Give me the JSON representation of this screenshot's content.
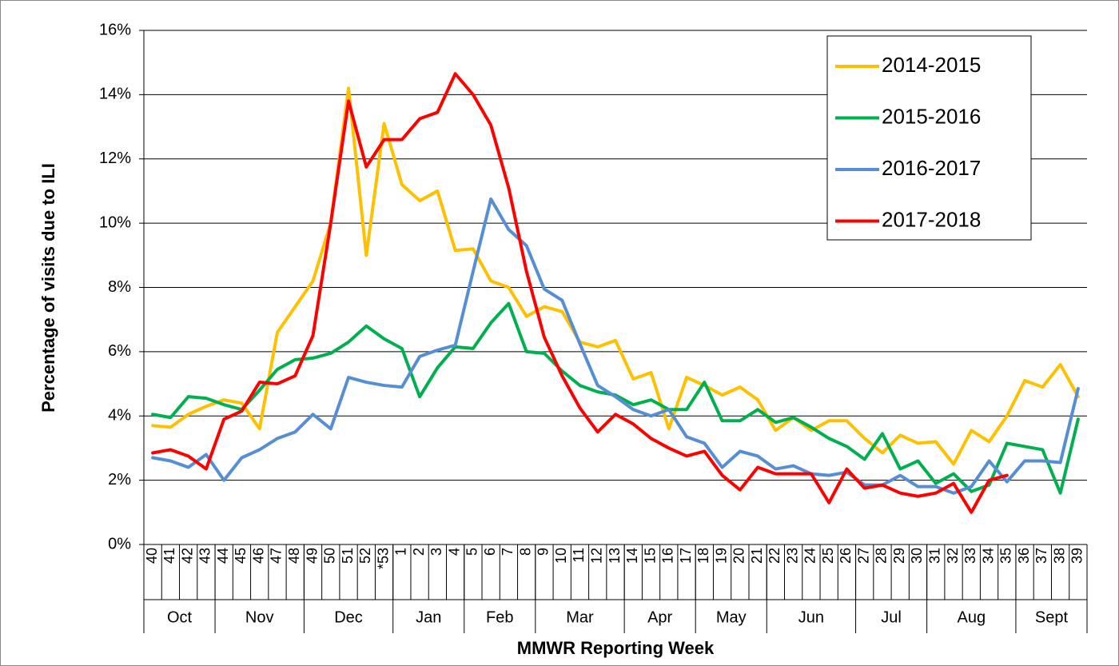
{
  "chart_data": {
    "type": "line",
    "y_label": "Percentage of visits due to ILI",
    "x_label": "MMWR Reporting Week",
    "category_groups": [
      {
        "label": "Oct",
        "categories": [
          "40",
          "41",
          "42",
          "43"
        ]
      },
      {
        "label": "Nov",
        "categories": [
          "44",
          "45",
          "46",
          "47",
          "48"
        ]
      },
      {
        "label": "Dec",
        "categories": [
          "49",
          "50",
          "51",
          "52",
          "*53"
        ]
      },
      {
        "label": "Jan",
        "categories": [
          "1",
          "2",
          "3",
          "4"
        ]
      },
      {
        "label": "Feb",
        "categories": [
          "5",
          "6",
          "7",
          "8"
        ]
      },
      {
        "label": "Mar",
        "categories": [
          "9",
          "10",
          "11",
          "12",
          "13"
        ]
      },
      {
        "label": "Apr",
        "categories": [
          "14",
          "15",
          "16",
          "17"
        ]
      },
      {
        "label": "May",
        "categories": [
          "18",
          "19",
          "20",
          "21"
        ]
      },
      {
        "label": "Jun",
        "categories": [
          "22",
          "23",
          "24",
          "25",
          "26"
        ]
      },
      {
        "label": "Jul",
        "categories": [
          "27",
          "28",
          "29",
          "30"
        ]
      },
      {
        "label": "Aug",
        "categories": [
          "31",
          "32",
          "33",
          "34",
          "35"
        ]
      },
      {
        "label": "Sept",
        "categories": [
          "36",
          "37",
          "38",
          "39"
        ]
      }
    ],
    "series": [
      {
        "name": "2014-2015",
        "color": "#ffc000",
        "values": [
          3.7,
          3.65,
          4.05,
          4.3,
          4.5,
          4.4,
          3.6,
          6.6,
          7.4,
          8.2,
          10.0,
          14.2,
          9.0,
          13.1,
          11.2,
          10.7,
          11.0,
          9.15,
          9.2,
          8.2,
          8.0,
          7.1,
          7.4,
          7.25,
          6.3,
          6.15,
          6.35,
          5.15,
          5.35,
          3.6,
          5.2,
          4.95,
          4.65,
          4.9,
          4.5,
          3.55,
          3.95,
          3.55,
          3.85,
          3.85,
          3.3,
          2.85,
          3.4,
          3.15,
          3.2,
          2.5,
          3.55,
          3.2,
          4.0,
          5.1,
          4.9,
          5.6,
          4.6
        ]
      },
      {
        "name": "2015-2016",
        "color": "#00b050",
        "values": [
          4.05,
          3.95,
          4.6,
          4.55,
          4.35,
          4.2,
          4.8,
          5.45,
          5.75,
          5.8,
          5.95,
          6.3,
          6.8,
          6.4,
          6.1,
          4.6,
          5.5,
          6.15,
          6.1,
          6.9,
          7.5,
          6.0,
          5.95,
          5.4,
          4.95,
          4.75,
          4.65,
          4.35,
          4.5,
          4.2,
          4.2,
          5.05,
          3.85,
          3.85,
          4.2,
          3.8,
          3.95,
          3.65,
          3.3,
          3.05,
          2.65,
          3.45,
          2.35,
          2.6,
          1.9,
          2.2,
          1.65,
          1.85,
          3.15,
          3.05,
          2.95,
          1.6,
          3.9
        ]
      },
      {
        "name": "2016-2017",
        "color": "#558ed5",
        "values": [
          2.7,
          2.6,
          2.4,
          2.8,
          2.0,
          2.7,
          2.95,
          3.3,
          3.5,
          4.05,
          3.6,
          5.2,
          5.05,
          4.95,
          4.9,
          5.85,
          6.05,
          6.2,
          8.5,
          10.75,
          9.8,
          9.3,
          7.95,
          7.6,
          6.25,
          4.95,
          4.6,
          4.2,
          4.0,
          4.2,
          3.35,
          3.15,
          2.4,
          2.9,
          2.75,
          2.35,
          2.45,
          2.2,
          2.15,
          2.25,
          1.85,
          1.85,
          2.15,
          1.8,
          1.8,
          1.6,
          1.8,
          2.6,
          1.95,
          2.6,
          2.6,
          2.55,
          4.85
        ]
      },
      {
        "name": "2017-2018",
        "color": "#ff0000",
        "values": [
          2.85,
          2.95,
          2.75,
          2.35,
          3.9,
          4.15,
          5.05,
          5.0,
          5.25,
          6.5,
          10.0,
          13.8,
          11.75,
          12.6,
          12.6,
          13.25,
          13.45,
          14.65,
          14.0,
          13.05,
          11.1,
          8.5,
          6.45,
          5.25,
          4.25,
          3.5,
          4.05,
          3.75,
          3.3,
          3.0,
          2.75,
          2.9,
          2.15,
          1.7,
          2.4,
          2.2,
          2.2,
          2.2,
          1.3,
          2.35,
          1.75,
          1.85,
          1.6,
          1.5,
          1.6,
          1.9,
          1.0,
          2.0,
          2.15,
          null,
          null,
          null,
          null
        ]
      }
    ],
    "ylim": [
      0,
      16
    ],
    "yticks": [
      {
        "value": 0,
        "label": "0%"
      },
      {
        "value": 2,
        "label": "2%"
      },
      {
        "value": 4,
        "label": "4%"
      },
      {
        "value": 6,
        "label": "6%"
      },
      {
        "value": 8,
        "label": "8%"
      },
      {
        "value": 10,
        "label": "10%"
      },
      {
        "value": 12,
        "label": "12%"
      },
      {
        "value": 14,
        "label": "14%"
      },
      {
        "value": 16,
        "label": "16%"
      }
    ],
    "grid": true,
    "legend": "top-right"
  }
}
